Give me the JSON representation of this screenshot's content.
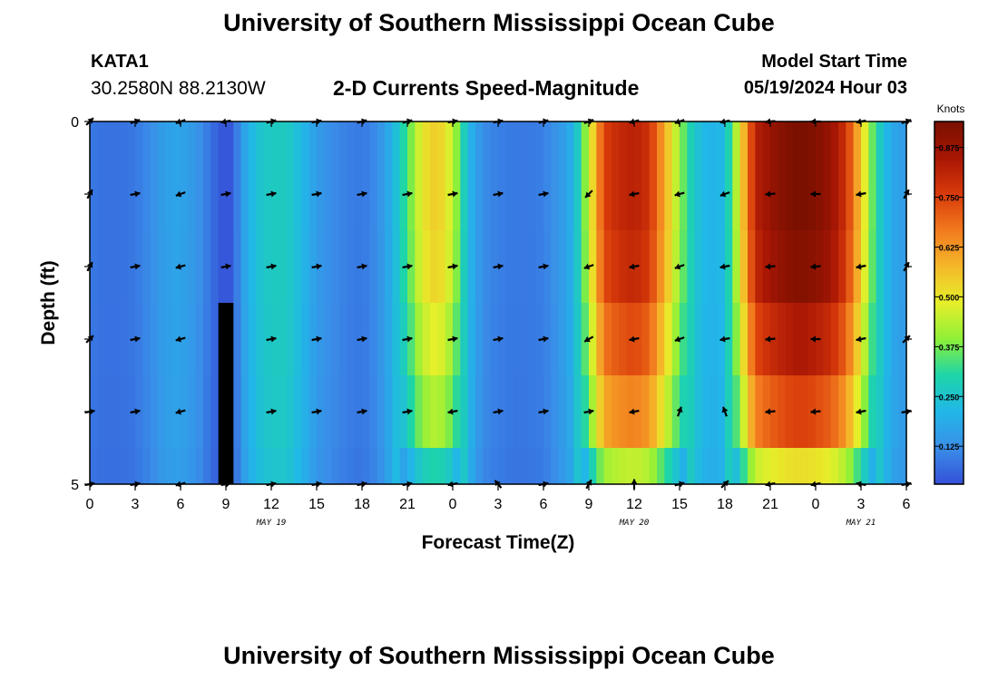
{
  "header": {
    "title": "University of Southern Mississippi Ocean Cube",
    "station_id": "KATA1",
    "coordinates": "30.2580N  88.2130W",
    "subtitle": "2-D Currents Speed-Magnitude",
    "model_start_label": "Model Start Time",
    "model_start_value": "05/19/2024 Hour 03"
  },
  "footer": {
    "title": "University of Southern Mississippi Ocean Cube"
  },
  "chart_data": {
    "type": "heatmap",
    "title": "2-D Currents Speed-Magnitude",
    "xlabel": "Forecast Time(Z)",
    "ylabel": "Depth (ft)",
    "x_tick_labels": [
      "0",
      "3",
      "6",
      "9",
      "12",
      "15",
      "18",
      "21",
      "0",
      "3",
      "6",
      "9",
      "12",
      "15",
      "18",
      "21",
      "0",
      "3",
      "6"
    ],
    "date_labels": [
      {
        "label": "MAY 19",
        "at_hour": 12
      },
      {
        "label": "MAY 20",
        "at_hour": 36
      },
      {
        "label": "MAY 21",
        "at_hour": 51
      }
    ],
    "x_range_hours": [
      0,
      54
    ],
    "y_range_ft": [
      0,
      5
    ],
    "y_tick_labels": [
      "0",
      "5"
    ],
    "colorbar": {
      "title": "Knots",
      "ticks": [
        "0.875",
        "0.750",
        "0.625",
        "0.500",
        "0.375",
        "0.250",
        "0.125"
      ],
      "tick_values": [
        0.875,
        0.75,
        0.625,
        0.5,
        0.375,
        0.25,
        0.125
      ],
      "range": [
        0.03,
        0.94
      ],
      "colors": [
        "#3550d8",
        "#3a8ee8",
        "#21b7e8",
        "#1dd5a8",
        "#8ef038",
        "#e6ef2a",
        "#f5b82a",
        "#f27a1e",
        "#d83a0a",
        "#a81604",
        "#781000"
      ]
    },
    "depth_layers_ft": [
      0,
      1,
      2,
      3,
      4,
      5
    ],
    "speed_profile_hours": [
      0,
      1,
      2,
      3,
      4,
      5,
      6,
      7,
      8,
      8.5,
      9,
      9.5,
      10,
      11,
      12,
      13,
      14,
      15,
      16,
      17,
      18,
      19,
      20,
      21,
      22,
      23,
      24,
      25,
      26,
      27,
      28,
      29,
      30,
      31,
      32,
      33,
      34,
      35,
      36,
      37,
      38,
      39,
      40,
      41,
      42,
      43,
      44,
      45,
      46,
      47,
      48,
      49,
      50,
      51,
      52,
      53,
      54
    ],
    "speed_profile_knots": [
      0.09,
      0.08,
      0.08,
      0.09,
      0.12,
      0.16,
      0.17,
      0.14,
      0.08,
      0.05,
      0.03,
      0.05,
      0.15,
      0.24,
      0.27,
      0.27,
      0.22,
      0.15,
      0.12,
      0.1,
      0.09,
      0.12,
      0.2,
      0.34,
      0.5,
      0.55,
      0.45,
      0.22,
      0.12,
      0.1,
      0.09,
      0.09,
      0.1,
      0.14,
      0.2,
      0.45,
      0.75,
      0.8,
      0.82,
      0.78,
      0.6,
      0.4,
      0.25,
      0.2,
      0.22,
      0.5,
      0.82,
      0.88,
      0.92,
      0.94,
      0.92,
      0.88,
      0.78,
      0.55,
      0.3,
      0.18,
      0.15
    ],
    "depth_factor": [
      1.0,
      1.0,
      0.98,
      0.9,
      0.8,
      0.55
    ],
    "arrow_hours": [
      0,
      3,
      6,
      9,
      12,
      15,
      18,
      21,
      24,
      27,
      30,
      33,
      36,
      39,
      42,
      45,
      48,
      51,
      54
    ],
    "arrow_depths_ft": [
      0,
      1,
      2,
      3,
      4,
      5
    ],
    "arrow_direction_deg": [
      [
        45,
        20,
        200,
        190,
        15,
        10,
        15,
        15,
        10,
        10,
        15,
        20,
        195,
        200,
        190,
        185,
        180,
        190,
        20
      ],
      [
        60,
        10,
        200,
        10,
        10,
        10,
        10,
        10,
        10,
        10,
        10,
        225,
        190,
        195,
        200,
        185,
        180,
        190,
        60
      ],
      [
        60,
        10,
        195,
        10,
        10,
        10,
        10,
        10,
        10,
        10,
        10,
        200,
        190,
        200,
        190,
        185,
        185,
        190,
        60
      ],
      [
        45,
        10,
        195,
        10,
        10,
        10,
        10,
        10,
        10,
        10,
        10,
        210,
        190,
        200,
        190,
        185,
        180,
        190,
        45
      ],
      [
        10,
        10,
        195,
        10,
        10,
        10,
        10,
        10,
        190,
        10,
        10,
        10,
        190,
        70,
        110,
        185,
        185,
        190,
        10
      ],
      [
        10,
        10,
        195,
        10,
        10,
        10,
        10,
        10,
        190,
        130,
        10,
        60,
        90,
        15,
        45,
        190,
        190,
        170,
        10
      ]
    ]
  }
}
